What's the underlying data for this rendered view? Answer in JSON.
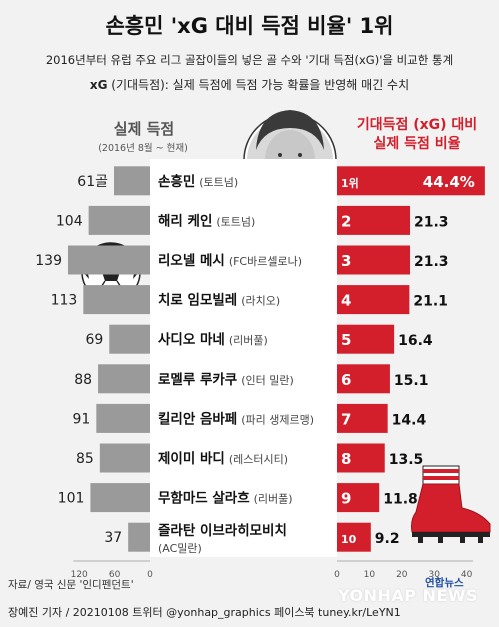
{
  "header": {
    "title": "손흥민 'xG 대비 득점 비율' 1위",
    "subtitle": "2016년부터 유럽 주요 리그 골잡이들의 넣은 골 수와 '기대 득점(xG)'을 비교한 통계",
    "definition_term": "xG",
    "definition_text": "(기대득점): 실제 득점에 득점 가능 확률을 반영해 매긴 수치"
  },
  "left_heading": {
    "title": "실제 득점",
    "subtitle": "(2016년 8월 ~ 현재)"
  },
  "right_heading": {
    "line1": "기대득점 (xG) 대비",
    "line2": "실제 득점 비율"
  },
  "goal_unit": "골",
  "footer": {
    "source": "자료/ 영국 신문 '인디펜던트'",
    "credit": "장예진 기자 / 20210108 트위터 @yonhap_graphics  페이스북 tuney.kr/LeYN1",
    "logo": "연합뉴스",
    "watermark": "YONHAP NEWS"
  },
  "colors": {
    "accent": "#d21f2b",
    "bar_gray": "#9a9a9a",
    "name_box": "#ffffff"
  },
  "chart_data": {
    "type": "bar",
    "players": [
      {
        "rank": "1위",
        "name": "손흥민",
        "club": "(토트넘)",
        "goals": 61,
        "ratio": 44.4,
        "ratio_label": "44.4%"
      },
      {
        "rank": "2",
        "name": "해리 케인",
        "club": "(토트넘)",
        "goals": 104,
        "ratio": 21.3,
        "ratio_label": "21.3"
      },
      {
        "rank": "3",
        "name": "리오넬 메시",
        "club": "(FC바르셀로나)",
        "goals": 139,
        "ratio": 21.3,
        "ratio_label": "21.3"
      },
      {
        "rank": "4",
        "name": "치로 임모빌레",
        "club": "(라치오)",
        "goals": 113,
        "ratio": 21.1,
        "ratio_label": "21.1"
      },
      {
        "rank": "5",
        "name": "사디오 마네",
        "club": "(리버풀)",
        "goals": 69,
        "ratio": 16.4,
        "ratio_label": "16.4"
      },
      {
        "rank": "6",
        "name": "로멜루 루카쿠",
        "club": "(인터 밀란)",
        "goals": 88,
        "ratio": 15.1,
        "ratio_label": "15.1"
      },
      {
        "rank": "7",
        "name": "킬리안 음바페",
        "club": "(파리 생제르맹)",
        "goals": 91,
        "ratio": 14.4,
        "ratio_label": "14.4"
      },
      {
        "rank": "8",
        "name": "제이미 바디",
        "club": "(레스터시티)",
        "goals": 85,
        "ratio": 13.5,
        "ratio_label": "13.5"
      },
      {
        "rank": "9",
        "name": "무함마드 살라흐",
        "club": "(리버풀)",
        "goals": 101,
        "ratio": 11.8,
        "ratio_label": "11.8"
      },
      {
        "rank": "10",
        "name": "즐라탄 이브라히모비치",
        "club": "(AC밀란)",
        "goals": 37,
        "ratio": 9.2,
        "ratio_label": "9.2"
      }
    ],
    "left_axis": {
      "ticks": [
        120,
        60,
        0
      ],
      "max": 139
    },
    "right_axis": {
      "ticks": [
        0,
        10,
        20,
        30,
        40
      ]
    }
  }
}
